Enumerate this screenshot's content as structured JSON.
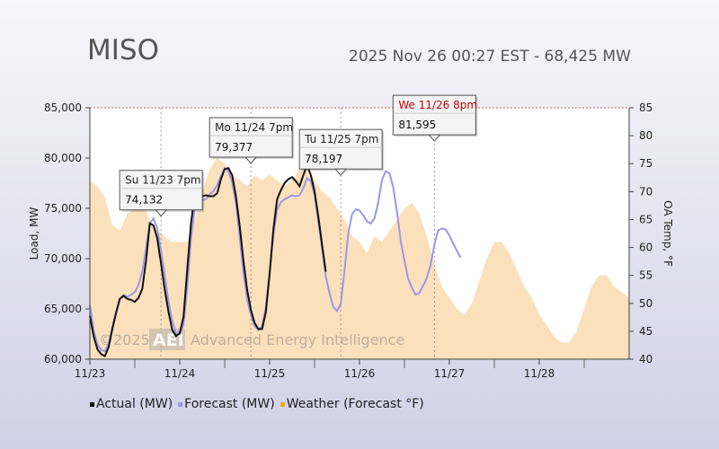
{
  "header": {
    "title": "MISO",
    "subtitle": "2025 Nov 26 00:27 EST - 68,425 MW"
  },
  "watermark": {
    "copyright": "©2025",
    "logo": "AEI",
    "company": "Advanced Energy Intelligence"
  },
  "colors": {
    "actual": "#111111",
    "forecast": "#9a98e8",
    "weather": "#fbe0bc",
    "weather_legend": "#f5a623",
    "highlight_title": "#d00000"
  },
  "legend": [
    {
      "label": "Actual (MW)",
      "color": "#111111"
    },
    {
      "label": "Forecast (MW)",
      "color": "#9a98e8"
    },
    {
      "label": "Weather (Forecast °F)",
      "color": "#f5a623"
    }
  ],
  "chart_data": {
    "type": "line",
    "title": "MISO",
    "subtitle": "2025 Nov 26 00:27 EST - 68,425 MW",
    "x_unit": "hours since 11/23 00:00",
    "x_ticks": [
      {
        "x": 0,
        "label": "11/23"
      },
      {
        "x": 24,
        "label": "11/24"
      },
      {
        "x": 48,
        "label": "11/25"
      },
      {
        "x": 72,
        "label": "11/26"
      },
      {
        "x": 96,
        "label": "11/27"
      },
      {
        "x": 120,
        "label": "11/28"
      }
    ],
    "xlim": [
      0,
      144
    ],
    "y_left": {
      "label": "Load, MW",
      "lim": [
        60000,
        85000
      ],
      "ticks": [
        "60,000",
        "65,000",
        "70,000",
        "75,000",
        "80,000",
        "85,000"
      ]
    },
    "y_right": {
      "label": "OA Temp, °F",
      "lim": [
        40,
        85
      ],
      "ticks": [
        "40",
        "45",
        "50",
        "55",
        "60",
        "65",
        "70",
        "75",
        "80",
        "85"
      ]
    },
    "series": [
      {
        "name": "Actual (MW)",
        "axis": "left",
        "points": [
          [
            0,
            64300
          ],
          [
            1,
            62300
          ],
          [
            2,
            61000
          ],
          [
            3,
            60500
          ],
          [
            4,
            60300
          ],
          [
            5,
            61200
          ],
          [
            6,
            63000
          ],
          [
            7,
            64600
          ],
          [
            8,
            66000
          ],
          [
            9,
            66300
          ],
          [
            10,
            66000
          ],
          [
            11,
            65900
          ],
          [
            12,
            65700
          ],
          [
            13,
            66100
          ],
          [
            14,
            67000
          ],
          [
            15,
            69800
          ],
          [
            16,
            73500
          ],
          [
            17,
            73300
          ],
          [
            18,
            72000
          ],
          [
            19,
            69500
          ],
          [
            20,
            66900
          ],
          [
            21,
            64700
          ],
          [
            22,
            62900
          ],
          [
            23,
            62300
          ],
          [
            24,
            62600
          ],
          [
            25,
            64200
          ],
          [
            26,
            68900
          ],
          [
            27,
            73500
          ],
          [
            28,
            76300
          ],
          [
            29,
            76600
          ],
          [
            30,
            76200
          ],
          [
            31,
            76300
          ],
          [
            32,
            76200
          ],
          [
            33,
            76200
          ],
          [
            34,
            76500
          ],
          [
            35,
            77900
          ],
          [
            36,
            78900
          ],
          [
            37,
            79000
          ],
          [
            38,
            78300
          ],
          [
            39,
            76200
          ],
          [
            40,
            73300
          ],
          [
            41,
            69800
          ],
          [
            42,
            66900
          ],
          [
            43,
            64900
          ],
          [
            44,
            63600
          ],
          [
            45,
            63000
          ],
          [
            46,
            63000
          ],
          [
            47,
            64700
          ],
          [
            48,
            68500
          ],
          [
            49,
            72900
          ],
          [
            50,
            75900
          ],
          [
            51,
            76800
          ],
          [
            52,
            77500
          ],
          [
            53,
            77900
          ],
          [
            54,
            78100
          ],
          [
            55,
            77700
          ],
          [
            56,
            77200
          ],
          [
            57,
            78300
          ],
          [
            58,
            79300
          ],
          [
            59,
            78300
          ],
          [
            60,
            76700
          ],
          [
            61,
            74200
          ],
          [
            62,
            71400
          ],
          [
            63,
            68700
          ]
        ]
      },
      {
        "name": "Forecast (MW)",
        "axis": "left",
        "points": [
          [
            0,
            65400
          ],
          [
            1,
            62900
          ],
          [
            2,
            61500
          ],
          [
            3,
            60900
          ],
          [
            4,
            60800
          ],
          [
            5,
            61500
          ],
          [
            6,
            63200
          ],
          [
            7,
            64700
          ],
          [
            8,
            66000
          ],
          [
            9,
            66400
          ],
          [
            10,
            66200
          ],
          [
            11,
            66400
          ],
          [
            12,
            66700
          ],
          [
            13,
            67400
          ],
          [
            14,
            68700
          ],
          [
            15,
            71000
          ],
          [
            16,
            73500
          ],
          [
            17,
            74000
          ],
          [
            18,
            73000
          ],
          [
            19,
            70800
          ],
          [
            20,
            68300
          ],
          [
            21,
            65700
          ],
          [
            22,
            63800
          ],
          [
            23,
            62600
          ],
          [
            24,
            62500
          ],
          [
            25,
            63400
          ],
          [
            26,
            67100
          ],
          [
            27,
            72000
          ],
          [
            28,
            75000
          ],
          [
            29,
            75700
          ],
          [
            30,
            75800
          ],
          [
            31,
            75900
          ],
          [
            32,
            76400
          ],
          [
            33,
            76700
          ],
          [
            34,
            77300
          ],
          [
            35,
            78200
          ],
          [
            36,
            79000
          ],
          [
            37,
            78700
          ],
          [
            38,
            77600
          ],
          [
            39,
            75500
          ],
          [
            40,
            72200
          ],
          [
            41,
            68600
          ],
          [
            42,
            66000
          ],
          [
            43,
            64300
          ],
          [
            44,
            63300
          ],
          [
            45,
            62900
          ],
          [
            46,
            63300
          ],
          [
            47,
            65200
          ],
          [
            48,
            68600
          ],
          [
            49,
            72300
          ],
          [
            50,
            74900
          ],
          [
            51,
            75600
          ],
          [
            52,
            75900
          ],
          [
            53,
            76100
          ],
          [
            54,
            76300
          ],
          [
            55,
            76200
          ],
          [
            56,
            76300
          ],
          [
            57,
            77000
          ],
          [
            58,
            78000
          ],
          [
            59,
            77700
          ],
          [
            60,
            76300
          ],
          [
            61,
            73700
          ],
          [
            62,
            71000
          ],
          [
            63,
            68200
          ],
          [
            64,
            66600
          ],
          [
            65,
            65200
          ],
          [
            66,
            64800
          ],
          [
            67,
            65500
          ],
          [
            68,
            68800
          ],
          [
            69,
            72500
          ],
          [
            70,
            74400
          ],
          [
            71,
            74900
          ],
          [
            72,
            74800
          ],
          [
            73,
            74300
          ],
          [
            74,
            73700
          ],
          [
            75,
            73500
          ],
          [
            76,
            74000
          ],
          [
            77,
            75600
          ],
          [
            78,
            77800
          ],
          [
            79,
            78700
          ],
          [
            80,
            78500
          ],
          [
            81,
            77100
          ],
          [
            82,
            74700
          ],
          [
            83,
            71800
          ],
          [
            84,
            69800
          ],
          [
            85,
            68000
          ],
          [
            86,
            67100
          ],
          [
            87,
            66400
          ],
          [
            88,
            66600
          ],
          [
            89,
            67300
          ],
          [
            90,
            68100
          ],
          [
            91,
            69400
          ],
          [
            92,
            71400
          ],
          [
            93,
            72800
          ],
          [
            94,
            73000
          ],
          [
            95,
            72900
          ],
          [
            96,
            72300
          ],
          [
            97,
            71500
          ],
          [
            98,
            70800
          ],
          [
            99,
            70100
          ]
        ]
      },
      {
        "name": "Weather (Forecast °F)",
        "axis": "right",
        "type": "area",
        "points": [
          [
            0,
            72
          ],
          [
            2,
            71
          ],
          [
            4,
            69
          ],
          [
            6,
            64
          ],
          [
            8,
            63
          ],
          [
            10,
            66
          ],
          [
            12,
            67
          ],
          [
            14,
            68
          ],
          [
            16,
            65
          ],
          [
            18,
            63
          ],
          [
            20,
            62
          ],
          [
            22,
            61
          ],
          [
            24,
            61
          ],
          [
            26,
            61
          ],
          [
            28,
            65
          ],
          [
            30,
            70
          ],
          [
            32,
            74
          ],
          [
            34,
            76
          ],
          [
            36,
            75
          ],
          [
            38,
            73
          ],
          [
            40,
            72
          ],
          [
            42,
            71
          ],
          [
            44,
            73
          ],
          [
            46,
            72
          ],
          [
            48,
            73
          ],
          [
            50,
            72
          ],
          [
            52,
            71
          ],
          [
            54,
            72
          ],
          [
            56,
            74
          ],
          [
            58,
            74
          ],
          [
            60,
            72
          ],
          [
            62,
            70
          ],
          [
            64,
            69
          ],
          [
            66,
            67
          ],
          [
            68,
            65
          ],
          [
            70,
            62
          ],
          [
            72,
            61
          ],
          [
            74,
            59
          ],
          [
            76,
            62
          ],
          [
            78,
            61
          ],
          [
            80,
            63
          ],
          [
            82,
            65
          ],
          [
            84,
            67
          ],
          [
            86,
            68
          ],
          [
            88,
            66
          ],
          [
            90,
            62
          ],
          [
            92,
            57
          ],
          [
            94,
            53
          ],
          [
            96,
            51
          ],
          [
            98,
            49
          ],
          [
            100,
            48
          ],
          [
            102,
            50
          ],
          [
            104,
            54
          ],
          [
            106,
            58
          ],
          [
            108,
            61
          ],
          [
            110,
            61
          ],
          [
            112,
            59
          ],
          [
            114,
            56
          ],
          [
            116,
            53
          ],
          [
            118,
            51
          ],
          [
            120,
            48
          ],
          [
            122,
            46
          ],
          [
            124,
            44
          ],
          [
            126,
            43
          ],
          [
            128,
            43
          ],
          [
            130,
            45
          ],
          [
            132,
            49
          ],
          [
            134,
            53
          ],
          [
            136,
            55
          ],
          [
            138,
            55
          ],
          [
            140,
            53
          ],
          [
            142,
            52
          ],
          [
            144,
            51
          ]
        ]
      }
    ],
    "annotations": [
      {
        "title": "Su 11/23 7pm",
        "value": "74,132",
        "x": 19,
        "y": 74132,
        "highlight": false
      },
      {
        "title": "Mo 11/24 7pm",
        "value": "79,377",
        "x": 43,
        "y": 79377,
        "highlight": false
      },
      {
        "title": "Tu 11/25 7pm",
        "value": "78,197",
        "x": 67,
        "y": 78197,
        "highlight": false
      },
      {
        "title": "We 11/26 8pm",
        "value": "81,595",
        "x": 92,
        "y": 81595,
        "highlight": true
      }
    ],
    "legend_position": "bottom-left",
    "grid": false
  }
}
